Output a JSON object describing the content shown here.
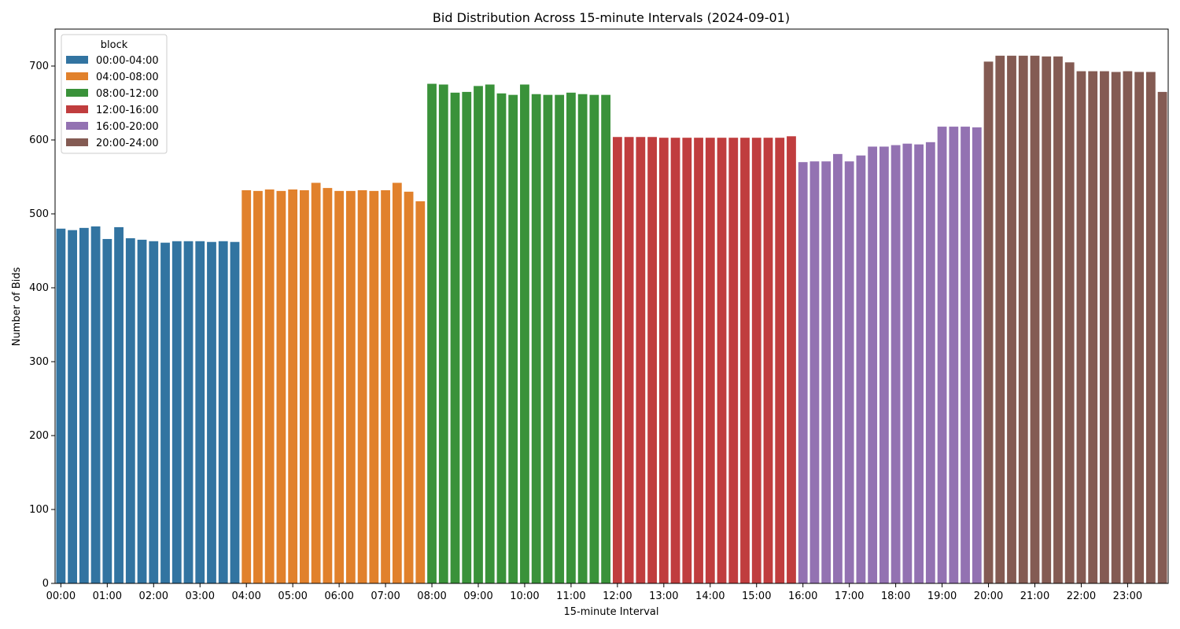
{
  "chart_data": {
    "type": "bar",
    "title": "Bid Distribution Across 15-minute Intervals (2024-09-01)",
    "xlabel": "15-minute Interval",
    "ylabel": "Number of Bids",
    "ylim": [
      0,
      750
    ],
    "yticks": [
      0,
      100,
      200,
      300,
      400,
      500,
      600,
      700
    ],
    "xtick_labels": [
      "00:00",
      "01:00",
      "02:00",
      "03:00",
      "04:00",
      "05:00",
      "06:00",
      "07:00",
      "08:00",
      "09:00",
      "10:00",
      "11:00",
      "12:00",
      "13:00",
      "14:00",
      "15:00",
      "16:00",
      "17:00",
      "18:00",
      "19:00",
      "20:00",
      "21:00",
      "22:00",
      "23:00"
    ],
    "legend": {
      "title": "block",
      "placement": "upper-left",
      "entries": [
        {
          "label": "00:00-04:00",
          "color": "#3274a1"
        },
        {
          "label": "04:00-08:00",
          "color": "#e1812c"
        },
        {
          "label": "08:00-12:00",
          "color": "#3a923a"
        },
        {
          "label": "12:00-16:00",
          "color": "#c03d3e"
        },
        {
          "label": "16:00-20:00",
          "color": "#9372b2"
        },
        {
          "label": "20:00-24:00",
          "color": "#845b53"
        }
      ]
    },
    "values": [
      480,
      478,
      481,
      483,
      466,
      482,
      467,
      465,
      463,
      461,
      463,
      463,
      463,
      462,
      463,
      462,
      532,
      531,
      533,
      531,
      533,
      532,
      542,
      535,
      531,
      531,
      532,
      531,
      532,
      542,
      530,
      517,
      676,
      675,
      664,
      665,
      673,
      675,
      663,
      661,
      675,
      662,
      661,
      661,
      664,
      662,
      661,
      661,
      604,
      604,
      604,
      604,
      603,
      603,
      603,
      603,
      603,
      603,
      603,
      603,
      603,
      603,
      603,
      605,
      570,
      571,
      571,
      581,
      571,
      579,
      591,
      591,
      593,
      595,
      594,
      597,
      618,
      618,
      618,
      617,
      706,
      714,
      714,
      714,
      714,
      713,
      713,
      705,
      693,
      693,
      693,
      692,
      693,
      692,
      692,
      665
    ]
  }
}
